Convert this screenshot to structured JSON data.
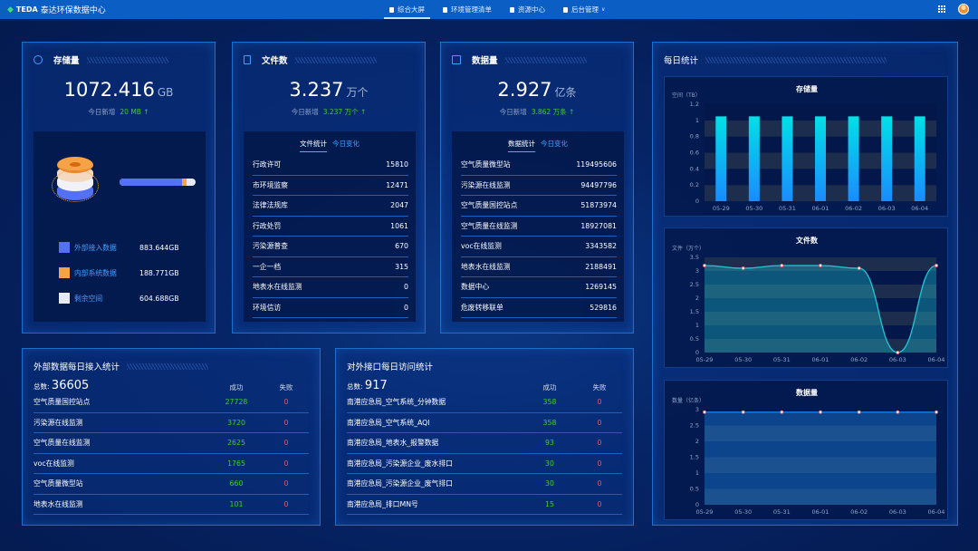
{
  "header": {
    "logo": "TEDA",
    "title": "泰达环保数据中心",
    "nav": [
      {
        "label": "综合大屏",
        "active": true
      },
      {
        "label": "环境管理清单"
      },
      {
        "label": "资源中心"
      },
      {
        "label": "后台管理",
        "dropdown": true
      }
    ]
  },
  "storage": {
    "title": "存储量",
    "value": "1072.416",
    "unit": "GB",
    "inc_label": "今日新增",
    "inc_value": "20 MB ↑",
    "bar_fractions": [
      0.824,
      0.06,
      0.116
    ],
    "legend": [
      {
        "label": "外部接入数据",
        "value": "883.644GB",
        "color": "#5470f5"
      },
      {
        "label": "内部系统数据",
        "value": "188.771GB",
        "color": "#f6a348"
      },
      {
        "label": "剩余空间",
        "value": "604.688GB",
        "color": "#e6ebf3"
      }
    ]
  },
  "files": {
    "title": "文件数",
    "value": "3.237",
    "unit": "万个",
    "inc_label": "今日新增",
    "inc_value": "3.237 万个 ↑",
    "tabs": [
      "文件统计",
      "今日变化"
    ],
    "rows": [
      [
        "行政许可",
        "15810"
      ],
      [
        "市环境监察",
        "12471"
      ],
      [
        "法律法规库",
        "2047"
      ],
      [
        "行政处罚",
        "1061"
      ],
      [
        "污染源普查",
        "670"
      ],
      [
        "一企一档",
        "315"
      ],
      [
        "地表水在线监测",
        "0"
      ],
      [
        "环境信访",
        "0"
      ]
    ]
  },
  "data": {
    "title": "数据量",
    "value": "2.927",
    "unit": "亿条",
    "inc_label": "今日新增",
    "inc_value": "3.862 万条 ↑",
    "tabs": [
      "数据统计",
      "今日变化"
    ],
    "rows": [
      [
        "空气质量微型站",
        "119495606"
      ],
      [
        "污染源在线监测",
        "94497796"
      ],
      [
        "空气质量国控站点",
        "51873974"
      ],
      [
        "空气质量在线监测",
        "18927081"
      ],
      [
        "voc在线监测",
        "3343582"
      ],
      [
        "地表水在线监测",
        "2188491"
      ],
      [
        "数据中心",
        "1269145"
      ],
      [
        "危废转移联单",
        "529816"
      ]
    ]
  },
  "external": {
    "title": "外部数据每日接入统计",
    "total_label": "总数:",
    "total": "36605",
    "col_success": "成功",
    "col_fail": "失败",
    "rows": [
      [
        "空气质量国控站点",
        "27728",
        "0"
      ],
      [
        "污染源在线监测",
        "3720",
        "0"
      ],
      [
        "空气质量在线监测",
        "2625",
        "0"
      ],
      [
        "voc在线监测",
        "1765",
        "0"
      ],
      [
        "空气质量微型站",
        "660",
        "0"
      ],
      [
        "地表水在线监测",
        "101",
        "0"
      ]
    ]
  },
  "api": {
    "title": "对外接口每日访问统计",
    "total_label": "总数:",
    "total": "917",
    "col_success": "成功",
    "col_fail": "失败",
    "rows": [
      [
        "南港应急局_空气系统_分钟数据",
        "358",
        "0"
      ],
      [
        "南港应急局_空气系统_AQI",
        "358",
        "0"
      ],
      [
        "南港应急局_地表水_报警数据",
        "93",
        "0"
      ],
      [
        "南港应急局_污染源企业_废水排口",
        "30",
        "0"
      ],
      [
        "南港应急局_污染源企业_废气排口",
        "30",
        "0"
      ],
      [
        "南港应急局_排口MN号",
        "15",
        "0"
      ]
    ]
  },
  "daily": {
    "title": "每日统计"
  },
  "chart_data": [
    {
      "type": "bar",
      "title": "存储量",
      "ylabel": "空间（TB）",
      "categories": [
        "05-29",
        "05-30",
        "05-31",
        "06-01",
        "06-02",
        "06-03",
        "06-04"
      ],
      "values": [
        1.05,
        1.05,
        1.05,
        1.05,
        1.05,
        1.05,
        1.05
      ],
      "ylim": [
        0,
        1.2
      ],
      "yticks": [
        "0",
        "0.2",
        "0.4",
        "0.6",
        "0.8",
        "1",
        "1.2"
      ],
      "color": "#00d8e6"
    },
    {
      "type": "area",
      "title": "文件数",
      "ylabel": "文件（万个）",
      "categories": [
        "05-29",
        "05-30",
        "05-31",
        "06-01",
        "06-02",
        "06-03",
        "06-04"
      ],
      "values": [
        3.2,
        3.1,
        3.2,
        3.2,
        3.1,
        0,
        3.2
      ],
      "ylim": [
        0,
        3.5
      ],
      "yticks": [
        "0",
        "0.5",
        "1",
        "1.5",
        "2",
        "2.5",
        "3",
        "3.5"
      ],
      "color": "#1fc8d8"
    },
    {
      "type": "area",
      "title": "数据量",
      "ylabel": "数量（亿条）",
      "categories": [
        "05-29",
        "05-30",
        "05-31",
        "06-01",
        "06-02",
        "06-03",
        "06-04"
      ],
      "values": [
        2.92,
        2.92,
        2.92,
        2.92,
        2.92,
        2.92,
        2.92
      ],
      "ylim": [
        0,
        3
      ],
      "yticks": [
        "0",
        "0.5",
        "1",
        "1.5",
        "2",
        "2.5",
        "3"
      ],
      "color": "#1a7fe0"
    }
  ]
}
